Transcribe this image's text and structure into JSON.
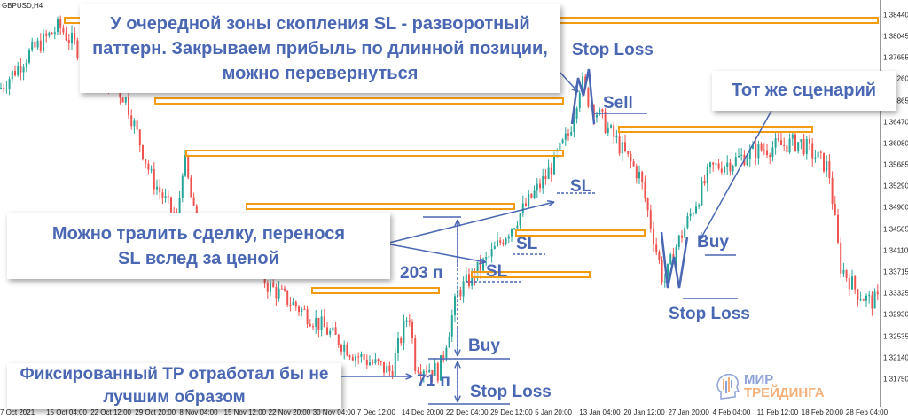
{
  "symbol": "GBPUSD,H4",
  "chart_data": {
    "type": "candlestick",
    "ylim": [
      1.3155,
      1.386
    ],
    "price_ticks": [
      "1.38440",
      "1.38045",
      "1.37655",
      "1.37260",
      "1.36865",
      "1.36470",
      "1.36080",
      "1.35685",
      "1.35290",
      "1.34900",
      "1.34505",
      "1.34110",
      "1.33715",
      "1.33325",
      "1.32930",
      "1.32535",
      "1.32140",
      "1.31750"
    ],
    "time_ticks": [
      "7 Oct 2021",
      "15 Oct 04:00",
      "22 Oct 12:00",
      "29 Oct 20:00",
      "8 Nov 04:00",
      "15 Nov 12:00",
      "22 Nov 20:00",
      "30 Nov 04:00",
      "7 Dec 12:00",
      "14 Dec 20:00",
      "22 Dec 04:00",
      "29 Dec 12:00",
      "5 Jan 20:00",
      "13 Jan 04:00",
      "20 Jan 12:00",
      "27 Jan 20:00",
      "4 Feb 04:00",
      "11 Feb 12:00",
      "18 Feb 20:00",
      "28 Feb 04:00"
    ],
    "close_path": [
      [
        "2021-10-07",
        1.3709
      ],
      [
        "2021-10-12",
        1.3774
      ],
      [
        "2021-10-17",
        1.3823
      ],
      [
        "2021-10-22",
        1.3758
      ],
      [
        "2021-10-29",
        1.3692
      ],
      [
        "2021-11-03",
        1.3546
      ],
      [
        "2021-11-08",
        1.3464
      ],
      [
        "2021-11-09",
        1.3587
      ],
      [
        "2021-11-12",
        1.3383
      ],
      [
        "2021-11-19",
        1.3448
      ],
      [
        "2021-11-22",
        1.335
      ],
      [
        "2021-11-30",
        1.3285
      ],
      [
        "2021-12-07",
        1.322
      ],
      [
        "2021-12-13",
        1.3188
      ],
      [
        "2021-12-16",
        1.33
      ],
      [
        "2021-12-17",
        1.3204
      ],
      [
        "2021-12-21",
        1.3188
      ],
      [
        "2021-12-22",
        1.3236
      ],
      [
        "2021-12-24",
        1.3334
      ],
      [
        "2021-12-29",
        1.3399
      ],
      [
        "2022-01-03",
        1.3481
      ],
      [
        "2022-01-07",
        1.3546
      ],
      [
        "2022-01-11",
        1.3627
      ],
      [
        "2022-01-13",
        1.3725
      ],
      [
        "2022-01-14",
        1.3692
      ],
      [
        "2022-01-17",
        1.3644
      ],
      [
        "2022-01-20",
        1.3595
      ],
      [
        "2022-01-23",
        1.3546
      ],
      [
        "2022-01-25",
        1.3448
      ],
      [
        "2022-01-27",
        1.335
      ],
      [
        "2022-01-29",
        1.3416
      ],
      [
        "2022-02-04",
        1.3562
      ],
      [
        "2022-02-08",
        1.3578
      ],
      [
        "2022-02-11",
        1.3595
      ],
      [
        "2022-02-18",
        1.3611
      ],
      [
        "2022-02-23",
        1.3562
      ],
      [
        "2022-02-25",
        1.3383
      ],
      [
        "2022-02-28",
        1.3334
      ],
      [
        "2022-03-02",
        1.3318
      ]
    ],
    "colors": {
      "up": "#26a69a",
      "down": "#ef5350",
      "zone": "#f39c12",
      "annotation": "#4a67b4"
    }
  },
  "notes": {
    "top": "У очередной зоны скопления SL - разворотный паттерн. Закрываем прибыль по длинной позиции, можно перевернуться",
    "trail": "Можно тралить сделку, перенося SL вслед за ценой",
    "fixed_tp": "Фиксированный TP отработал бы не лучшим образом",
    "same": "Тот же сценарий"
  },
  "labels": {
    "stop_loss_top": "Stop Loss",
    "sell": "Sell",
    "sl1": "SL",
    "sl2": "SL",
    "sl3": "SL",
    "buy_right": "Buy",
    "stop_loss_right": "Stop Loss",
    "pips_203": "203 п",
    "pips_71": "71 п",
    "buy_left": "Buy",
    "stop_loss_bottom": "Stop Loss"
  },
  "logo": {
    "line1": "МИР",
    "line2": "ТРЕЙДИНГА"
  }
}
